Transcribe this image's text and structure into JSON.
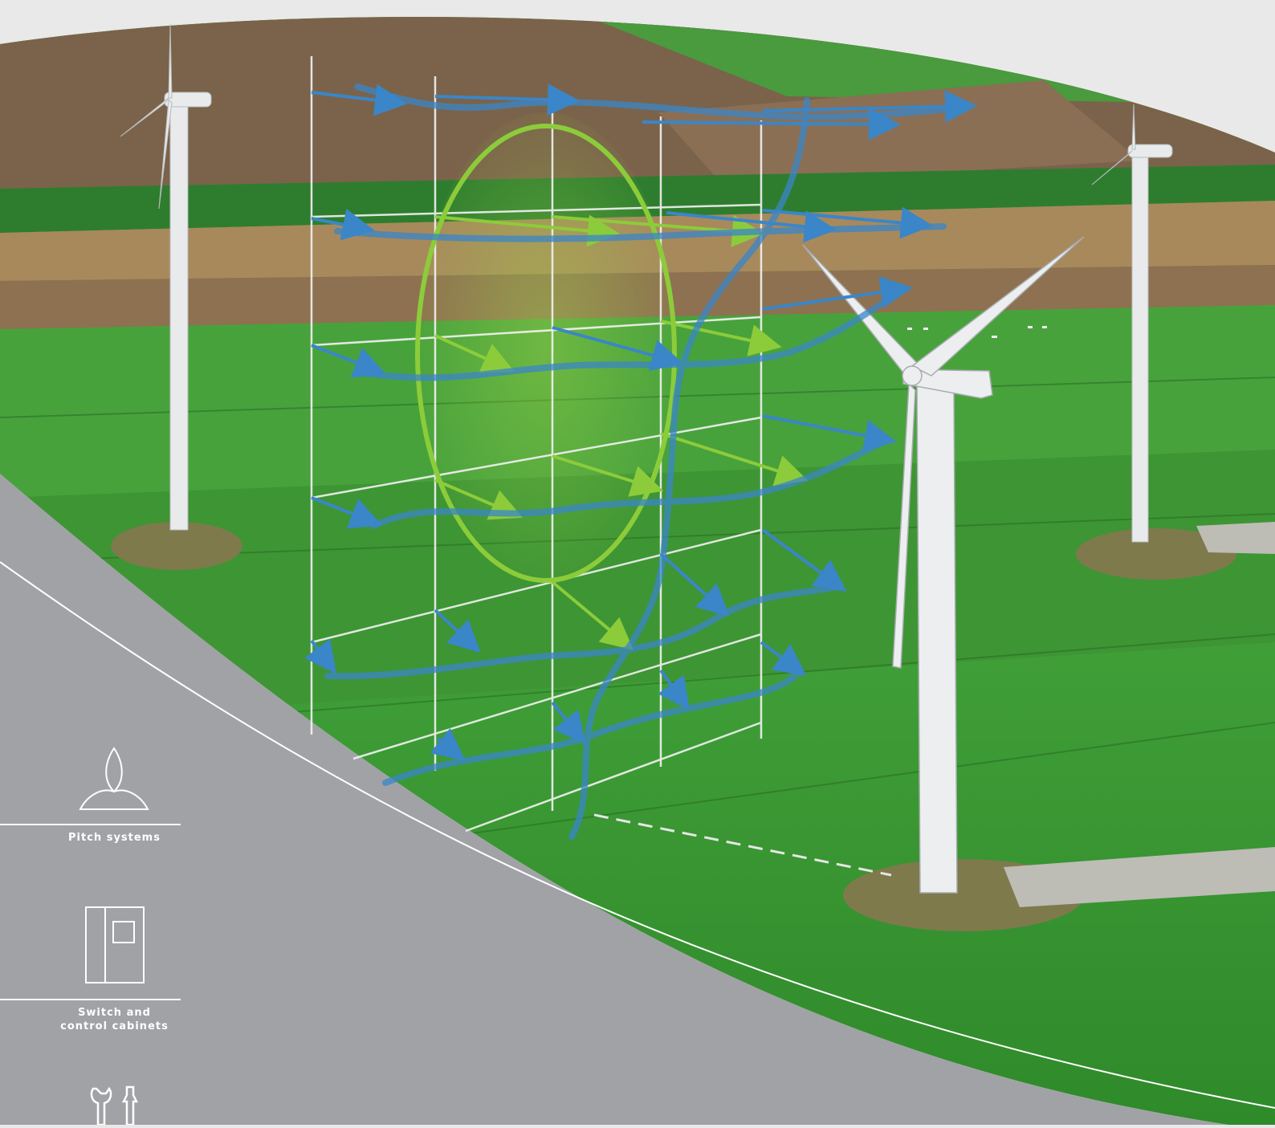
{
  "colors": {
    "page_background": "#e9e9e9",
    "panel_grey": "#a1a2a6",
    "field_green": "#3f9a36",
    "wind_blue": "#3a86c8",
    "wind_green": "#8ccc3a",
    "line_white": "#ffffff"
  },
  "sidebar": {
    "items": [
      {
        "label": "Pitch systems",
        "icon": "pitch-rotor-icon"
      },
      {
        "label": "Switch and\ncontrol cabinets",
        "icon": "control-cabinet-icon"
      },
      {
        "label": "",
        "icon": "service-tools-icon"
      }
    ]
  }
}
